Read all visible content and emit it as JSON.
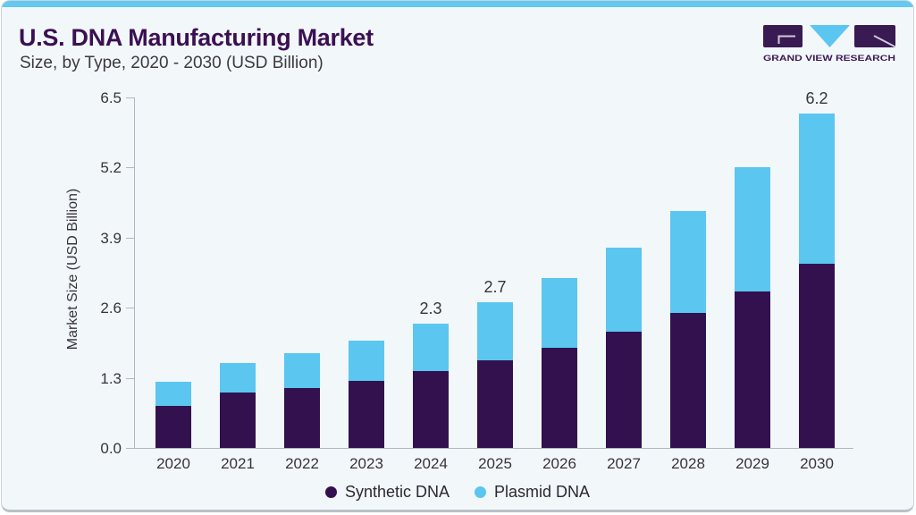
{
  "card": {
    "bg": "#F2F7FA",
    "top_strip_color": "#63C9F1",
    "border_color": "#CBD3D9"
  },
  "header": {
    "title": "U.S. DNA Manufacturing Market",
    "subtitle": "Size, by Type, 2020 - 2030 (USD Billion)",
    "title_color": "#3B1053"
  },
  "logo": {
    "name": "Grand View Research logo",
    "text": "GRAND VIEW RESEARCH",
    "purple": "#3A1A52",
    "blue": "#5BC6F0"
  },
  "chart_data": {
    "type": "bar",
    "stacked": true,
    "title": "U.S. DNA Manufacturing Market Size, by Type, 2020 - 2030 (USD Billion)",
    "ylabel": "Market Size (USD Billion)",
    "xlabel": "",
    "ylim": [
      0,
      6.5
    ],
    "yticks": [
      0.0,
      1.3,
      2.6,
      3.9,
      5.2,
      6.5
    ],
    "ytick_labels": [
      "0.0",
      "1.3",
      "2.6",
      "3.9",
      "5.2",
      "6.5"
    ],
    "grid": false,
    "legend_position": "bottom",
    "categories": [
      "2020",
      "2021",
      "2022",
      "2023",
      "2024",
      "2025",
      "2026",
      "2027",
      "2028",
      "2029",
      "2030"
    ],
    "series": [
      {
        "name": "Synthetic DNA",
        "color": "#33114E",
        "values": [
          0.78,
          1.02,
          1.11,
          1.25,
          1.42,
          1.62,
          1.86,
          2.15,
          2.5,
          2.91,
          3.42
        ]
      },
      {
        "name": "Plasmid DNA",
        "color": "#5BC6F0",
        "values": [
          0.45,
          0.55,
          0.64,
          0.75,
          0.88,
          1.08,
          1.3,
          1.56,
          1.89,
          2.31,
          2.78
        ]
      }
    ],
    "totals": [
      1.23,
      1.57,
      1.75,
      2.0,
      2.3,
      2.7,
      3.16,
      3.71,
      4.39,
      5.22,
      6.2
    ],
    "total_labels": [
      "",
      "",
      "",
      "",
      "2.3",
      "2.7",
      "",
      "",
      "",
      "",
      "6.2"
    ]
  },
  "legend": {
    "items": [
      {
        "label": "Synthetic DNA",
        "color": "#33114E"
      },
      {
        "label": "Plasmid DNA",
        "color": "#5BC6F0"
      }
    ]
  }
}
